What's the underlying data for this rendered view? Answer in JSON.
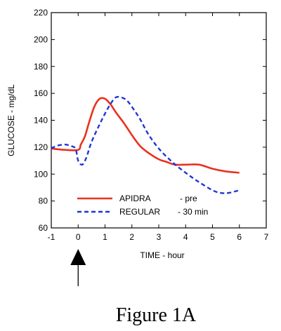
{
  "chart_data": {
    "type": "line",
    "xlabel": "TIME - hour",
    "ylabel": "GLUCOSE - mg/dL",
    "xlim": [
      -1,
      7
    ],
    "ylim": [
      60,
      220
    ],
    "x_ticks": [
      -1,
      0,
      1,
      2,
      3,
      4,
      5,
      6,
      7
    ],
    "y_ticks": [
      60,
      80,
      100,
      120,
      140,
      160,
      180,
      200,
      220
    ],
    "grid": false,
    "legend_position": "bottom-center",
    "series": [
      {
        "name": "APIDRA",
        "legend_suffix": "- pre",
        "color": "#e8321e",
        "style": "solid",
        "x": [
          -1,
          -0.5,
          0,
          0.1,
          0.25,
          0.4,
          0.6,
          0.8,
          1.0,
          1.2,
          1.4,
          1.7,
          2.0,
          2.3,
          2.6,
          3.0,
          3.3,
          3.6,
          4.0,
          4.5,
          5.0,
          5.5,
          6.0
        ],
        "values": [
          119,
          118,
          118,
          122,
          128,
          138,
          150,
          156,
          156,
          152,
          146,
          138,
          129,
          121,
          116,
          111,
          109,
          107,
          107,
          107,
          104,
          102,
          101
        ]
      },
      {
        "name": "REGULAR",
        "legend_suffix": "- 30 min",
        "color": "#1f36d6",
        "style": "dashed",
        "x": [
          -1,
          -0.8,
          -0.5,
          -0.3,
          -0.1,
          0,
          0.15,
          0.3,
          0.5,
          0.8,
          1.0,
          1.2,
          1.4,
          1.6,
          1.8,
          2.0,
          2.3,
          2.6,
          3.0,
          3.5,
          4.0,
          4.5,
          5.0,
          5.3,
          5.6,
          6.0
        ],
        "values": [
          119,
          121,
          122,
          121,
          119,
          110,
          107,
          112,
          124,
          137,
          145,
          152,
          157,
          157,
          155,
          150,
          141,
          130,
          119,
          109,
          101,
          94,
          88,
          86,
          86,
          88
        ]
      }
    ],
    "annotation": "upward arrow at x = 0"
  },
  "figure_caption": "Figure 1A",
  "colors": {
    "apidra": "#e8321e",
    "regular": "#1f36d6",
    "axis": "#000000"
  }
}
